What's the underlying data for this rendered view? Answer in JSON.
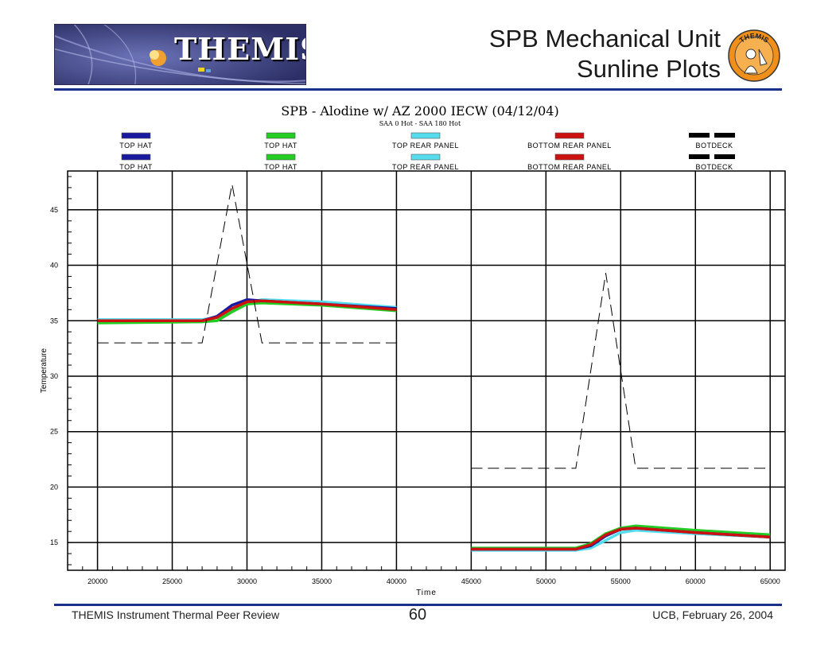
{
  "slide": {
    "logo_text": "THEMIS",
    "title_line1": "SPB Mechanical Unit",
    "title_line2": "Sunline Plots",
    "seal_text": "THEMIS",
    "footer_left": "THEMIS Instrument Thermal Peer Review",
    "page_number": "60",
    "footer_right": "UCB, February 26, 2004"
  },
  "colors": {
    "rule": "#1a2f8a",
    "top_hat_blue": "#1a1aa0",
    "top_hat_green": "#22cc22",
    "top_rear_panel": "#55ddee",
    "bottom_rear_panel": "#cc1111",
    "botdeck": "#000000"
  },
  "chart_data": {
    "type": "line",
    "title": "SPB - Alodine w/ AZ 2000 IECW  (04/12/04)",
    "subtitle": "SAA 0 Hot - SAA 180 Hot",
    "xlabel": "Time",
    "ylabel": "Temperature",
    "xlim": [
      18000,
      66000
    ],
    "ylim": [
      12.5,
      48.5
    ],
    "xticks": [
      20000,
      25000,
      30000,
      35000,
      40000,
      45000,
      50000,
      55000,
      60000,
      65000
    ],
    "yticks": [
      15,
      20,
      25,
      30,
      35,
      40,
      45
    ],
    "grid": true,
    "legend_position": "top",
    "legend": [
      {
        "label": "TOP HAT",
        "color": "#1a1aa0",
        "style": "solid"
      },
      {
        "label": "TOP HAT",
        "color": "#22cc22",
        "style": "solid"
      },
      {
        "label": "TOP REAR PANEL",
        "color": "#55ddee",
        "style": "solid"
      },
      {
        "label": "BOTTOM REAR PANEL",
        "color": "#cc1111",
        "style": "solid"
      },
      {
        "label": "BOTDECK",
        "color": "#000000",
        "style": "dashed"
      },
      {
        "label": "TOP HAT",
        "color": "#1a1aa0",
        "style": "solid"
      },
      {
        "label": "TOP HAT",
        "color": "#22cc22",
        "style": "solid"
      },
      {
        "label": "TOP REAR PANEL",
        "color": "#55ddee",
        "style": "solid"
      },
      {
        "label": "BOTTOM REAR PANEL",
        "color": "#cc1111",
        "style": "solid"
      },
      {
        "label": "BOTDECK",
        "color": "#000000",
        "style": "dashed"
      }
    ],
    "series": [
      {
        "color": "#55ddee",
        "style": "solid",
        "points": [
          [
            20000,
            35.1
          ],
          [
            27000,
            35.1
          ],
          [
            28000,
            35.3
          ],
          [
            29000,
            36.0
          ],
          [
            30000,
            36.6
          ],
          [
            31000,
            36.9
          ],
          [
            35000,
            36.7
          ],
          [
            40000,
            36.2
          ]
        ]
      },
      {
        "color": "#1a1aa0",
        "style": "solid",
        "points": [
          [
            20000,
            35.0
          ],
          [
            27000,
            35.0
          ],
          [
            28000,
            35.4
          ],
          [
            29000,
            36.4
          ],
          [
            30000,
            36.9
          ],
          [
            31000,
            36.8
          ],
          [
            35000,
            36.5
          ],
          [
            40000,
            36.1
          ]
        ]
      },
      {
        "color": "#22cc22",
        "style": "solid",
        "points": [
          [
            20000,
            34.8
          ],
          [
            27000,
            34.9
          ],
          [
            28000,
            35.0
          ],
          [
            29000,
            35.8
          ],
          [
            30000,
            36.5
          ],
          [
            31000,
            36.6
          ],
          [
            35000,
            36.4
          ],
          [
            40000,
            35.9
          ]
        ]
      },
      {
        "color": "#cc1111",
        "style": "solid",
        "points": [
          [
            20000,
            35.0
          ],
          [
            27000,
            35.0
          ],
          [
            28000,
            35.3
          ],
          [
            29000,
            36.1
          ],
          [
            30000,
            36.7
          ],
          [
            31000,
            36.8
          ],
          [
            35000,
            36.5
          ],
          [
            40000,
            36.0
          ]
        ]
      },
      {
        "color": "#000000",
        "style": "dashed",
        "points": [
          [
            20000,
            33.0
          ],
          [
            27000,
            33.0
          ],
          [
            29000,
            47.3
          ],
          [
            31000,
            33.0
          ],
          [
            40000,
            33.0
          ]
        ]
      },
      {
        "color": "#55ddee",
        "style": "solid",
        "points": [
          [
            45000,
            14.3
          ],
          [
            52000,
            14.3
          ],
          [
            53000,
            14.5
          ],
          [
            54000,
            15.2
          ],
          [
            55000,
            15.9
          ],
          [
            56000,
            16.1
          ],
          [
            60000,
            15.8
          ],
          [
            65000,
            15.5
          ]
        ]
      },
      {
        "color": "#22cc22",
        "style": "solid",
        "points": [
          [
            45000,
            14.5
          ],
          [
            52000,
            14.5
          ],
          [
            53000,
            14.9
          ],
          [
            54000,
            15.8
          ],
          [
            55000,
            16.3
          ],
          [
            56000,
            16.5
          ],
          [
            60000,
            16.1
          ],
          [
            65000,
            15.7
          ]
        ]
      },
      {
        "color": "#1a1aa0",
        "style": "solid",
        "points": [
          [
            45000,
            14.4
          ],
          [
            52000,
            14.4
          ],
          [
            53000,
            14.7
          ],
          [
            54000,
            15.6
          ],
          [
            55000,
            16.2
          ],
          [
            56000,
            16.3
          ],
          [
            60000,
            15.9
          ],
          [
            65000,
            15.5
          ]
        ]
      },
      {
        "color": "#cc1111",
        "style": "solid",
        "points": [
          [
            45000,
            14.4
          ],
          [
            52000,
            14.4
          ],
          [
            53000,
            14.8
          ],
          [
            54000,
            15.7
          ],
          [
            55000,
            16.2
          ],
          [
            56000,
            16.3
          ],
          [
            60000,
            15.9
          ],
          [
            65000,
            15.5
          ]
        ]
      },
      {
        "color": "#000000",
        "style": "dashed",
        "points": [
          [
            45000,
            21.7
          ],
          [
            52000,
            21.7
          ],
          [
            54000,
            39.3
          ],
          [
            56000,
            21.7
          ],
          [
            65000,
            21.7
          ]
        ]
      }
    ]
  }
}
